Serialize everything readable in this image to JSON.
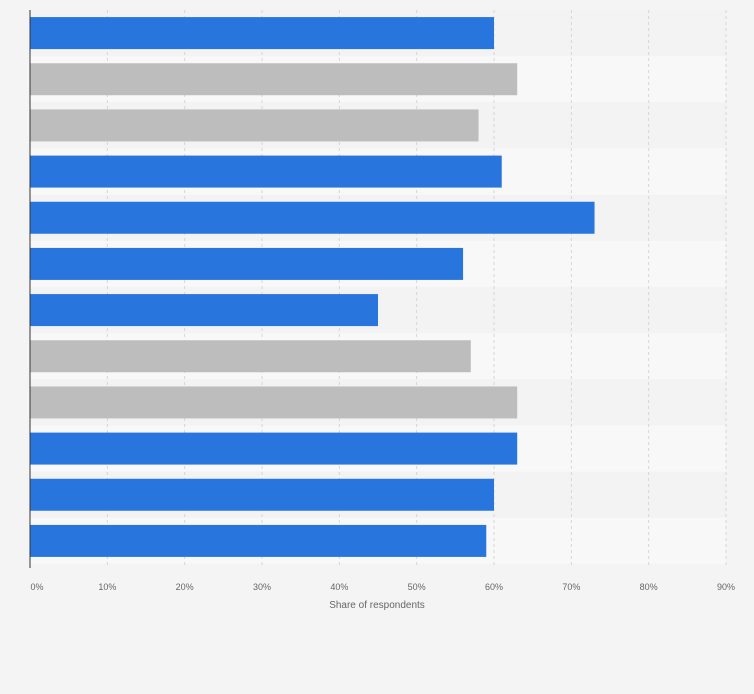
{
  "chart_data": {
    "type": "bar",
    "orientation": "horizontal",
    "title": "",
    "xlabel": "Share of respondents",
    "ylabel": "",
    "xlim": [
      0,
      90
    ],
    "x_ticks": [
      "0%",
      "10%",
      "20%",
      "30%",
      "40%",
      "50%",
      "60%",
      "70%",
      "80%",
      "90%"
    ],
    "grid": "vertical-dashed",
    "categories": [
      "",
      "",
      "",
      "",
      "",
      "",
      "",
      "",
      "",
      "",
      "",
      ""
    ],
    "values": [
      60,
      63,
      58,
      61,
      73,
      56,
      45,
      57,
      63,
      63,
      60,
      59
    ],
    "colors": [
      "#2876dd",
      "#bdbdbd",
      "#bdbdbd",
      "#2876dd",
      "#2876dd",
      "#2876dd",
      "#2876dd",
      "#bdbdbd",
      "#bdbdbd",
      "#2876dd",
      "#2876dd",
      "#2876dd"
    ]
  }
}
